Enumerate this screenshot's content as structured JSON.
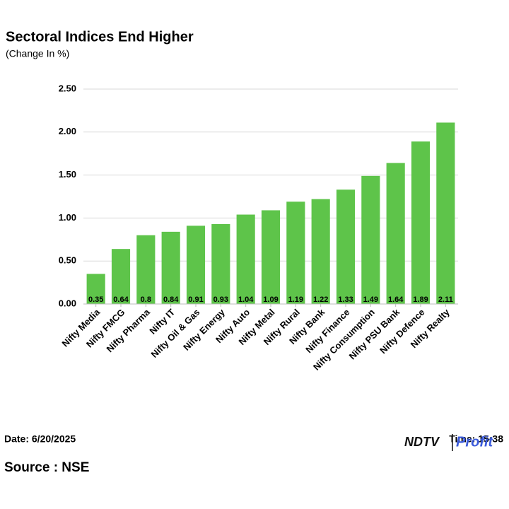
{
  "chart_data": {
    "type": "bar",
    "title": "Sectoral Indices End Higher",
    "subtitle": "(Change In %)",
    "categories": [
      "Nifty Media",
      "Nifty FMCG",
      "Nifty Pharma",
      "Nifty IT",
      "Nifty Oil & Gas",
      "Nifty Energy",
      "Nifty Auto",
      "Nifty Metal",
      "Nifty Rural",
      "Nifty Bank",
      "Nifty Finance",
      "Nifty Consumption",
      "Nifty PSU Bank",
      "Nifty Defence",
      "Nifty Realty"
    ],
    "values": [
      0.35,
      0.64,
      0.8,
      0.84,
      0.91,
      0.93,
      1.04,
      1.09,
      1.19,
      1.22,
      1.33,
      1.49,
      1.64,
      1.89,
      2.11
    ],
    "color": "#5ec44a",
    "ylim": [
      0,
      2.5
    ],
    "yticks": [
      {
        "value": 0,
        "label": "0.00"
      },
      {
        "value": 0.5,
        "label": "0.50"
      },
      {
        "value": 1,
        "label": "1.00"
      },
      {
        "value": 1.5,
        "label": "1.50"
      },
      {
        "value": 2,
        "label": "2.00"
      },
      {
        "value": 2.5,
        "label": "2.50"
      }
    ],
    "grid": true
  },
  "footer": {
    "date": "Date: 6/20/2025",
    "time": "Time: 15:38",
    "source": "Source : NSE",
    "logo": {
      "brand": "NDTV",
      "product": "Profit"
    }
  }
}
